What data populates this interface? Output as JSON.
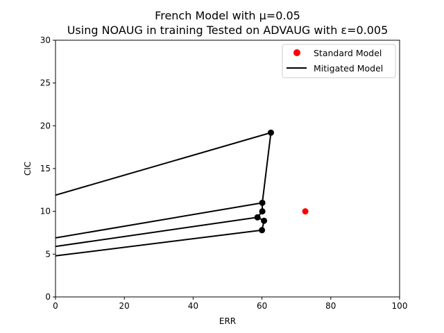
{
  "chart_data": {
    "type": "line",
    "title": "French Model with μ=0.05",
    "subtitle": "Using NOAUG in training Tested on ADVAUG with ε=0.005",
    "xlabel": "ERR",
    "ylabel": "CIC",
    "xlim": [
      0,
      100
    ],
    "ylim": [
      0,
      30
    ],
    "xticks": [
      0,
      20,
      40,
      60,
      80,
      100
    ],
    "yticks": [
      0,
      5,
      10,
      15,
      20,
      25,
      30
    ],
    "grid": false,
    "legend_position": "top-right",
    "colors": {
      "standard": "#ff0000",
      "mitigated": "#000000"
    },
    "series": [
      {
        "name": "Standard Model",
        "kind": "scatter",
        "x": [
          72.6
        ],
        "y": [
          10.0
        ]
      },
      {
        "name": "Mitigated Model",
        "kind": "line-with-markers",
        "x": [
          0,
          62.6,
          60.1,
          60.1,
          58.7,
          60.6,
          60.0
        ],
        "y": [
          11.9,
          19.2,
          11.0,
          10.0,
          9.3,
          8.9,
          7.8
        ],
        "segments": [
          {
            "x": [
              0,
              62.6
            ],
            "y": [
              11.9,
              19.2
            ]
          },
          {
            "x": [
              62.6,
              60.1,
              60.1,
              58.7,
              60.6,
              60.0
            ],
            "y": [
              19.2,
              11.0,
              10.0,
              9.3,
              8.9,
              7.8
            ]
          },
          {
            "x": [
              0,
              60.1
            ],
            "y": [
              6.9,
              11.0
            ]
          },
          {
            "x": [
              0,
              58.7
            ],
            "y": [
              5.9,
              9.3
            ]
          },
          {
            "x": [
              0,
              60.0
            ],
            "y": [
              4.8,
              7.8
            ]
          }
        ],
        "markers": {
          "x": [
            62.6,
            60.1,
            60.1,
            58.7,
            60.6,
            60.0
          ],
          "y": [
            19.2,
            11.0,
            10.0,
            9.3,
            8.9,
            7.8
          ]
        }
      }
    ]
  }
}
